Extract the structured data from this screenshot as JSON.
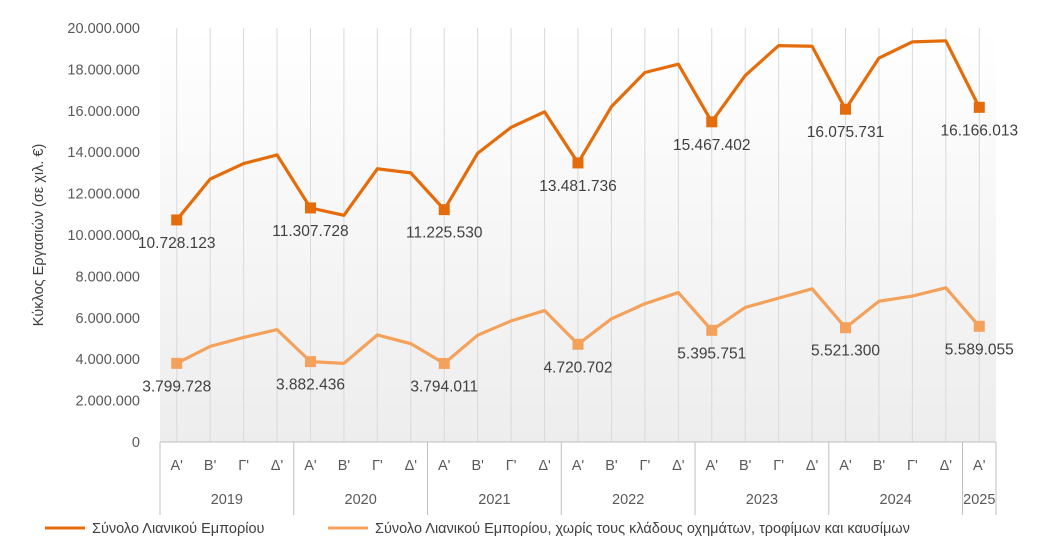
{
  "chart_data": {
    "type": "line",
    "ylabel": "Κύκλος Εργασιών (σε χιλ. €)",
    "ylim": [
      0,
      20000000
    ],
    "yticks": [
      0,
      2000000,
      4000000,
      6000000,
      8000000,
      10000000,
      12000000,
      14000000,
      16000000,
      18000000,
      20000000
    ],
    "ytick_labels": [
      "0",
      "2.000.000",
      "4.000.000",
      "6.000.000",
      "8.000.000",
      "10.000.000",
      "12.000.000",
      "14.000.000",
      "16.000.000",
      "18.000.000",
      "20.000.000"
    ],
    "categories": [
      "Α'",
      "Β'",
      "Γ'",
      "Δ'",
      "Α'",
      "Β'",
      "Γ'",
      "Δ'",
      "Α'",
      "Β'",
      "Γ'",
      "Δ'",
      "Α'",
      "Β'",
      "Γ'",
      "Δ'",
      "Α'",
      "Β'",
      "Γ'",
      "Δ'",
      "Α'",
      "Β'",
      "Γ'",
      "Δ'",
      "Α'"
    ],
    "years": [
      {
        "label": "2019",
        "span": 4
      },
      {
        "label": "2020",
        "span": 4
      },
      {
        "label": "2021",
        "span": 4
      },
      {
        "label": "2022",
        "span": 4
      },
      {
        "label": "2023",
        "span": 4
      },
      {
        "label": "2024",
        "span": 4
      },
      {
        "label": "2025",
        "span": 1
      }
    ],
    "grid": "vertical",
    "legend": "bottom",
    "series": [
      {
        "name": "Σύνολο Λιανικού Εμπορίου",
        "color": "#E46C0A",
        "values": [
          10728123,
          12700000,
          13450000,
          13870000,
          11307728,
          10950000,
          13200000,
          13000000,
          11225530,
          13950000,
          15200000,
          15950000,
          13481736,
          16200000,
          17850000,
          18250000,
          15467402,
          17700000,
          19150000,
          19120000,
          16075731,
          18550000,
          19330000,
          19380000,
          16166013
        ],
        "data_labels": [
          "10.728.123",
          "11.307.728",
          "11.225.530",
          "13.481.736",
          "15.467.402",
          "16.075.731",
          "16.166.013"
        ]
      },
      {
        "name": "Σύνολο Λιανικού Εμπορίου, χωρίς τους κλάδους οχημάτων, τροφίμων και καυσίμων",
        "color": "#F4A15C",
        "values": [
          3799728,
          4620000,
          5050000,
          5430000,
          3882436,
          3800000,
          5170000,
          4750000,
          3794011,
          5160000,
          5850000,
          6350000,
          4720702,
          5950000,
          6680000,
          7220000,
          5395751,
          6500000,
          6950000,
          7400000,
          5521300,
          6800000,
          7050000,
          7450000,
          5589055
        ],
        "data_labels": [
          "3.799.728",
          "3.882.436",
          "3.794.011",
          "4.720.702",
          "5.395.751",
          "5.521.300",
          "5.589.055"
        ]
      }
    ]
  }
}
